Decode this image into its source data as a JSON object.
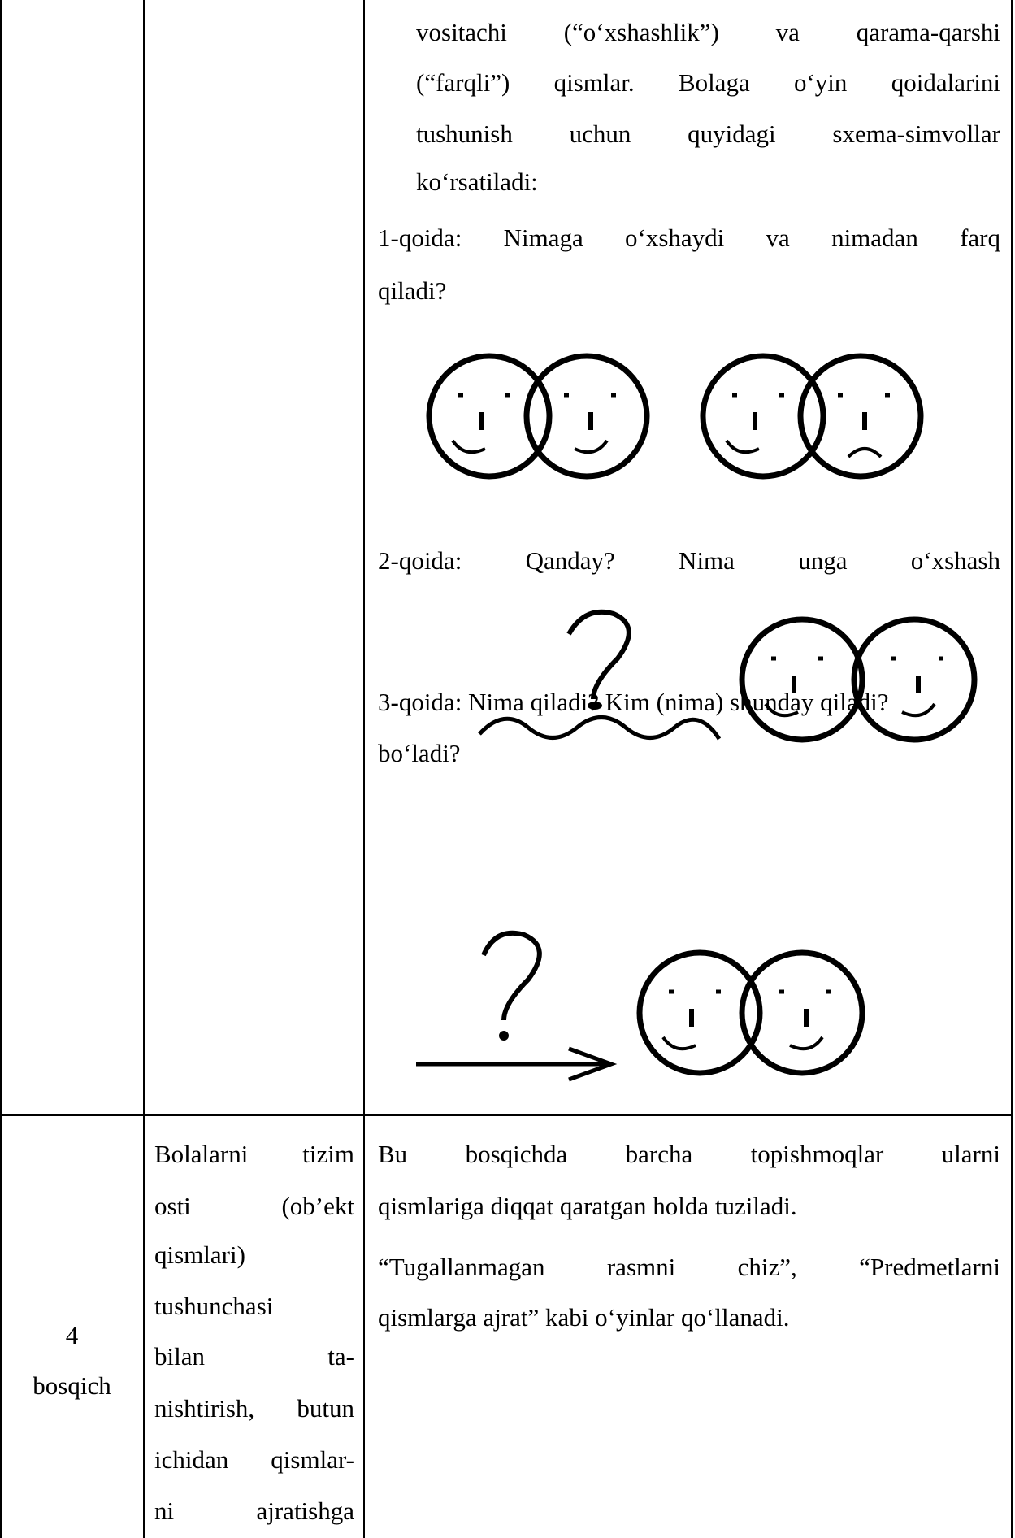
{
  "table": {
    "rows": [
      {
        "stage": [],
        "goal": [],
        "content": {
          "intro": [
            "vositachi (“o‘xshashlik”) va qarama-qarshi",
            "(“farqli”) qismlar. Bolaga o‘yin qoidalarini",
            "tushunish uchun quyidagi sxema-simvollar",
            "ko‘rsatiladi:"
          ],
          "rule1": [
            "1-qoida: Nimaga o‘xshaydi va nimadan farq",
            "qiladi?"
          ],
          "rule2": [
            "2-qoida: Qanday? Nima unga o‘xshash",
            "bo‘ladi?"
          ],
          "rule3": [
            "3-qoida: Nima qiladi? Kim (nima) shunday qiladi?"
          ]
        }
      },
      {
        "stage": [
          "4",
          "bosqich"
        ],
        "goal": [
          "Bolalarni tizim",
          "osti (ob’ekt",
          "qismlari)",
          "tushunchasi",
          "bilan ta-",
          "nishtirish, butun",
          "ichidan qismlar-",
          "ni ajratishga"
        ],
        "content": {
          "p1": [
            "Bu bosqichda barcha topishmoqlar ularni",
            "qismlariga diqqat qaratgan holda tuziladi."
          ],
          "p2": [
            "“Tugallanmagan rasmni chiz”, “Predmetlarni",
            "qismlarga ajrat” kabi o‘yinlar qo‘llanadi."
          ]
        }
      }
    ]
  }
}
